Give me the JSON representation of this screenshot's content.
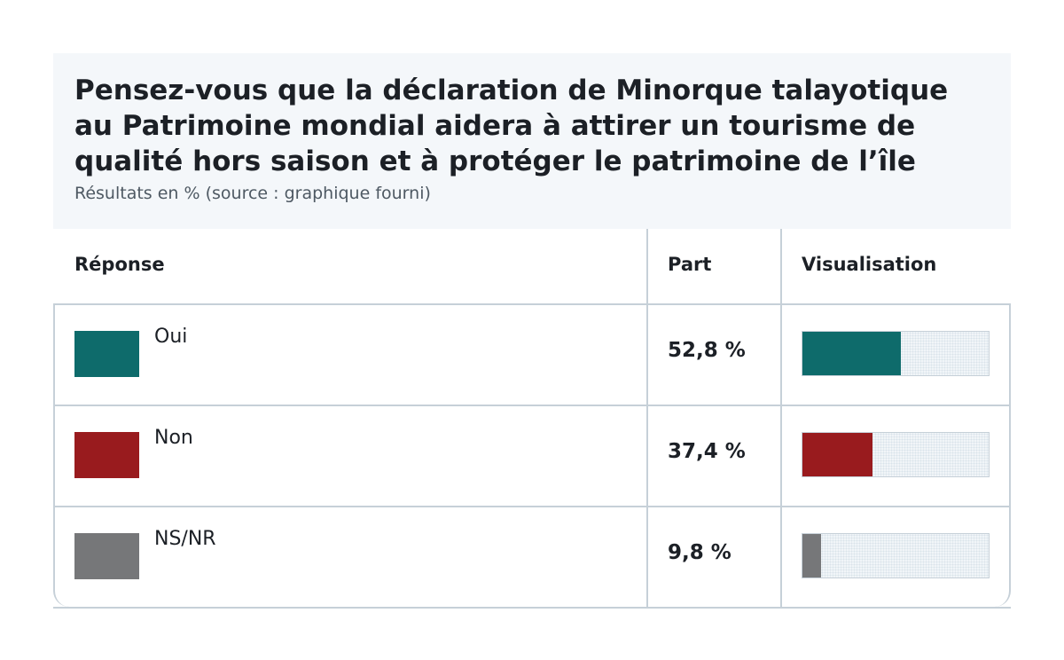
{
  "header": {
    "title_lines": [
      "Pensez-vous que la déclaration de Minorque talayotique",
      "au Patrimoine mondial aidera à attirer un tourisme de",
      "qualité hors saison et à protéger le patrimoine de l’île"
    ],
    "subtitle": "Résultats en % (source : graphique fourni)"
  },
  "columns": {
    "response": "Réponse",
    "share": "Part",
    "visual": "Visualisation"
  },
  "chart_data": {
    "type": "bar",
    "title": "Pensez-vous que la déclaration de Minorque talayotique au Patrimoine mondial aidera à attirer un tourisme de qualité hors saison et à protéger le patrimoine de l’île",
    "subtitle": "Résultats en % (source : graphique fourni)",
    "categories": [
      "Oui",
      "Non",
      "NS/NR"
    ],
    "values": [
      52.8,
      37.4,
      9.8
    ],
    "value_labels": [
      "52,8 %",
      "37,4 %",
      "9,8 %"
    ],
    "colors": [
      "#0e6b6b",
      "#991b1e",
      "#767779"
    ],
    "ylim": [
      0,
      100
    ],
    "legend": "none",
    "grid": false
  }
}
